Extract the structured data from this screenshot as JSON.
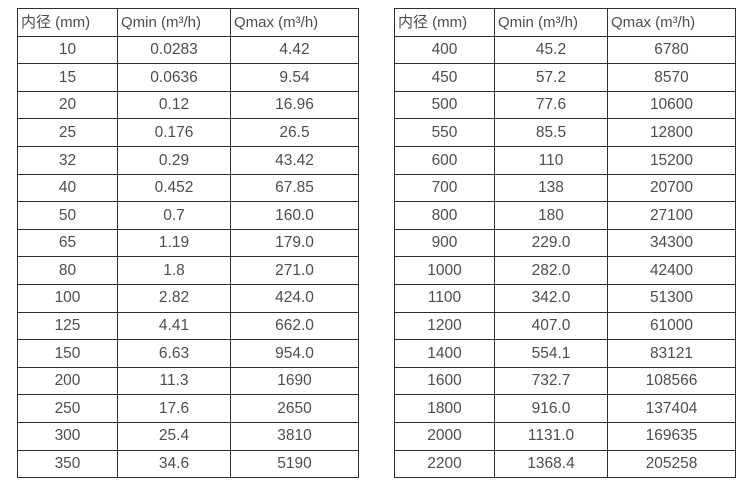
{
  "colors": {
    "background": "#ffffff",
    "border": "#2e2e2e",
    "text": "#4d4d4d"
  },
  "tables": [
    {
      "headers": [
        "内径 (mm)",
        "Qmin (m³/h)",
        "Qmax (m³/h)"
      ],
      "rows": [
        [
          "10",
          "0.0283",
          "4.42"
        ],
        [
          "15",
          "0.0636",
          "9.54"
        ],
        [
          "20",
          "0.12",
          "16.96"
        ],
        [
          "25",
          "0.176",
          "26.5"
        ],
        [
          "32",
          "0.29",
          "43.42"
        ],
        [
          "40",
          "0.452",
          "67.85"
        ],
        [
          "50",
          "0.7",
          "160.0"
        ],
        [
          "65",
          "1.19",
          "179.0"
        ],
        [
          "80",
          "1.8",
          "271.0"
        ],
        [
          "100",
          "2.82",
          "424.0"
        ],
        [
          "125",
          "4.41",
          "662.0"
        ],
        [
          "150",
          "6.63",
          "954.0"
        ],
        [
          "200",
          "11.3",
          "1690"
        ],
        [
          "250",
          "17.6",
          "2650"
        ],
        [
          "300",
          "25.4",
          "3810"
        ],
        [
          "350",
          "34.6",
          "5190"
        ]
      ]
    },
    {
      "headers": [
        "内径 (mm)",
        "Qmin (m³/h)",
        "Qmax (m³/h)"
      ],
      "rows": [
        [
          "400",
          "45.2",
          "6780"
        ],
        [
          "450",
          "57.2",
          "8570"
        ],
        [
          "500",
          "77.6",
          "10600"
        ],
        [
          "550",
          "85.5",
          "12800"
        ],
        [
          "600",
          "110",
          "15200"
        ],
        [
          "700",
          "138",
          "20700"
        ],
        [
          "800",
          "180",
          "27100"
        ],
        [
          "900",
          "229.0",
          "34300"
        ],
        [
          "1000",
          "282.0",
          "42400"
        ],
        [
          "1100",
          "342.0",
          "51300"
        ],
        [
          "1200",
          "407.0",
          "61000"
        ],
        [
          "1400",
          "554.1",
          "83121"
        ],
        [
          "1600",
          "732.7",
          "108566"
        ],
        [
          "1800",
          "916.0",
          "137404"
        ],
        [
          "2000",
          "1131.0",
          "169635"
        ],
        [
          "2200",
          "1368.4",
          "205258"
        ]
      ]
    }
  ]
}
